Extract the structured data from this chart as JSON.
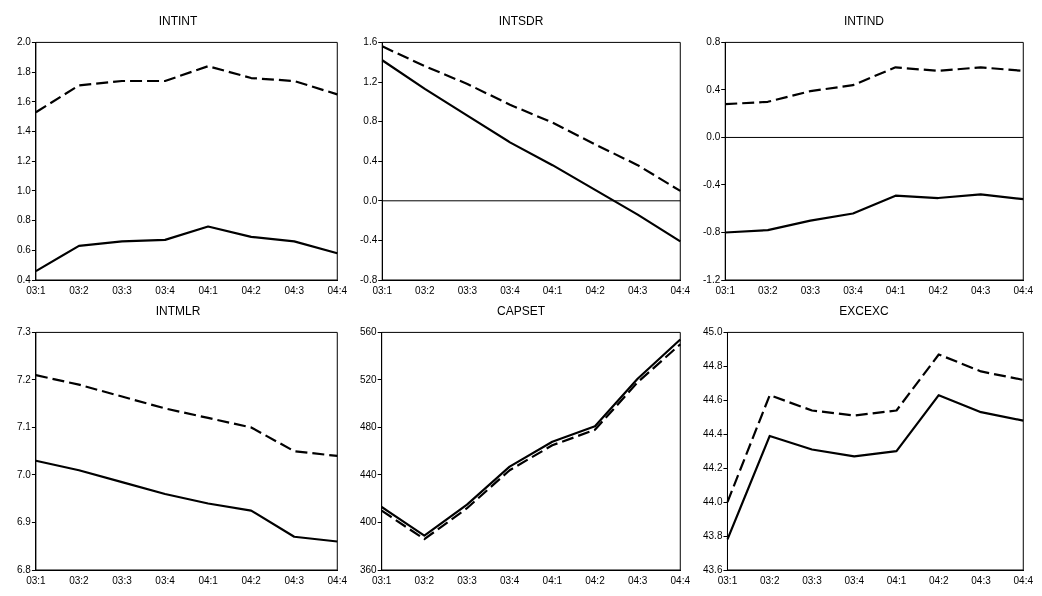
{
  "chart_data": [
    {
      "type": "line",
      "title": "INTINT",
      "categories": [
        "03:1",
        "03:2",
        "03:3",
        "03:4",
        "04:1",
        "04:2",
        "04:3",
        "04:4"
      ],
      "ylim": [
        0.4,
        2.0
      ],
      "yticks": [
        {
          "value": 0.4,
          "label": "0.4"
        },
        {
          "value": 0.6,
          "label": "0.6"
        },
        {
          "value": 0.8,
          "label": "0.8"
        },
        {
          "value": 1.0,
          "label": "1.0"
        },
        {
          "value": 1.2,
          "label": "1.2"
        },
        {
          "value": 1.4,
          "label": "1.4"
        },
        {
          "value": 1.6,
          "label": "1.6"
        },
        {
          "value": 1.8,
          "label": "1.8"
        },
        {
          "value": 2.0,
          "label": "2.0"
        }
      ],
      "grid": false,
      "legend": false,
      "marker": "none",
      "series": [
        {
          "color": "#000000",
          "line_style": "dashed",
          "values": [
            1.53,
            1.71,
            1.74,
            1.74,
            1.84,
            1.76,
            1.74,
            1.65
          ]
        },
        {
          "color": "#000000",
          "line_style": "solid",
          "values": [
            0.46,
            0.63,
            0.66,
            0.67,
            0.76,
            0.69,
            0.66,
            0.58
          ]
        }
      ]
    },
    {
      "type": "line",
      "title": "INTSDR",
      "categories": [
        "03:1",
        "03:2",
        "03:3",
        "03:4",
        "04:1",
        "04:2",
        "04:3",
        "04:4"
      ],
      "ylim": [
        -0.8,
        1.6
      ],
      "yticks": [
        {
          "value": -0.8,
          "label": "-0.8"
        },
        {
          "value": -0.4,
          "label": "-0.4"
        },
        {
          "value": 0,
          "label": "0.0"
        },
        {
          "value": 0.4,
          "label": "0.4"
        },
        {
          "value": 0.8,
          "label": "0.8"
        },
        {
          "value": 1.2,
          "label": "1.2"
        },
        {
          "value": 1.6,
          "label": "1.6"
        }
      ],
      "grid": false,
      "legend": false,
      "marker": "none",
      "ref_lines": [
        {
          "axis": "y",
          "value": 0,
          "color": "#000000"
        }
      ],
      "series": [
        {
          "color": "#000000",
          "line_style": "dashed",
          "values": [
            1.56,
            1.36,
            1.18,
            0.97,
            0.79,
            0.57,
            0.36,
            0.1
          ]
        },
        {
          "color": "#000000",
          "line_style": "solid",
          "values": [
            1.42,
            1.13,
            0.86,
            0.59,
            0.36,
            0.11,
            -0.14,
            -0.41
          ]
        }
      ]
    },
    {
      "type": "line",
      "title": "INTIND",
      "categories": [
        "03:1",
        "03:2",
        "03:3",
        "03:4",
        "04:1",
        "04:2",
        "04:3",
        "04:4"
      ],
      "ylim": [
        -1.2,
        0.8
      ],
      "yticks": [
        {
          "value": -1.2,
          "label": "-1.2"
        },
        {
          "value": -0.8,
          "label": "-0.8"
        },
        {
          "value": -0.4,
          "label": "-0.4"
        },
        {
          "value": 0,
          "label": "0.0"
        },
        {
          "value": 0.4,
          "label": "0.4"
        },
        {
          "value": 0.8,
          "label": "0.8"
        }
      ],
      "grid": false,
      "legend": false,
      "marker": "none",
      "ref_lines": [
        {
          "axis": "y",
          "value": 0,
          "color": "#000000"
        }
      ],
      "series": [
        {
          "color": "#000000",
          "line_style": "dashed",
          "values": [
            0.28,
            0.3,
            0.39,
            0.44,
            0.59,
            0.56,
            0.59,
            0.56
          ]
        },
        {
          "color": "#000000",
          "line_style": "solid",
          "values": [
            -0.8,
            -0.78,
            -0.7,
            -0.64,
            -0.49,
            -0.51,
            -0.48,
            -0.52
          ]
        }
      ]
    },
    {
      "type": "line",
      "title": "INTMLR",
      "categories": [
        "03:1",
        "03:2",
        "03:3",
        "03:4",
        "04:1",
        "04:2",
        "04:3",
        "04:4"
      ],
      "ylim": [
        6.8,
        7.3
      ],
      "yticks": [
        {
          "value": 6.8,
          "label": "6.8"
        },
        {
          "value": 6.9,
          "label": "6.9"
        },
        {
          "value": 7.0,
          "label": "7.0"
        },
        {
          "value": 7.1,
          "label": "7.1"
        },
        {
          "value": 7.2,
          "label": "7.2"
        },
        {
          "value": 7.3,
          "label": "7.3"
        }
      ],
      "grid": false,
      "legend": false,
      "marker": "none",
      "series": [
        {
          "color": "#000000",
          "line_style": "dashed",
          "values": [
            7.21,
            7.19,
            7.165,
            7.14,
            7.12,
            7.1,
            7.05,
            7.04
          ]
        },
        {
          "color": "#000000",
          "line_style": "solid",
          "values": [
            7.03,
            7.01,
            6.985,
            6.96,
            6.94,
            6.925,
            6.87,
            6.86
          ]
        }
      ]
    },
    {
      "type": "line",
      "title": "CAPSET",
      "categories": [
        "03:1",
        "03:2",
        "03:3",
        "03:4",
        "04:1",
        "04:2",
        "04:3",
        "04:4"
      ],
      "ylim": [
        360,
        560
      ],
      "yticks": [
        360,
        400,
        440,
        480,
        520,
        560
      ],
      "grid": false,
      "legend": false,
      "marker": "none",
      "series": [
        {
          "color": "#000000",
          "line_style": "solid",
          "values": [
            413,
            389,
            415,
            447,
            468,
            481,
            521,
            554
          ]
        },
        {
          "color": "#000000",
          "line_style": "dashed",
          "values": [
            410,
            386,
            412,
            444,
            465,
            478,
            518,
            550
          ]
        }
      ]
    },
    {
      "type": "line",
      "title": "EXCEXC",
      "categories": [
        "03:1",
        "03:2",
        "03:3",
        "03:4",
        "04:1",
        "04:2",
        "04:3",
        "04:4"
      ],
      "ylim": [
        43.6,
        45.0
      ],
      "yticks": [
        {
          "value": 43.6,
          "label": "43.6"
        },
        {
          "value": 43.8,
          "label": "43.8"
        },
        {
          "value": 44.0,
          "label": "44.0"
        },
        {
          "value": 44.2,
          "label": "44.2"
        },
        {
          "value": 44.4,
          "label": "44.4"
        },
        {
          "value": 44.6,
          "label": "44.6"
        },
        {
          "value": 44.8,
          "label": "44.8"
        },
        {
          "value": 45.0,
          "label": "45.0"
        }
      ],
      "grid": false,
      "legend": false,
      "marker": "none",
      "series": [
        {
          "color": "#000000",
          "line_style": "dashed",
          "values": [
            44.0,
            44.63,
            44.54,
            44.51,
            44.54,
            44.87,
            44.77,
            44.72
          ]
        },
        {
          "color": "#000000",
          "line_style": "solid",
          "values": [
            43.78,
            44.39,
            44.31,
            44.27,
            44.3,
            44.63,
            44.53,
            44.48
          ]
        }
      ]
    }
  ]
}
